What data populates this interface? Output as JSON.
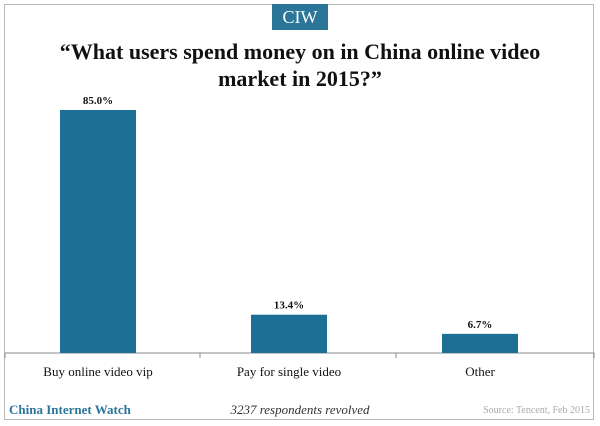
{
  "badge": "CIW",
  "footer": {
    "brand": "China Internet Watch",
    "note": "3237 respondents revolved",
    "source": "Source: Tencent, Feb 2015"
  },
  "colors": {
    "bar": "#1e6f96",
    "accent": "#2a7598"
  },
  "chart_data": {
    "type": "bar",
    "title": "“What users spend money on in China online video market in 2015?”",
    "categories": [
      "Buy online video vip",
      "Pay for single video",
      "Other"
    ],
    "values": [
      85.0,
      13.4,
      6.7
    ],
    "labels": [
      "85.0%",
      "13.4%",
      "6.7%"
    ],
    "ylim": [
      0,
      85
    ],
    "grid": false,
    "xlabel": "",
    "ylabel": ""
  }
}
